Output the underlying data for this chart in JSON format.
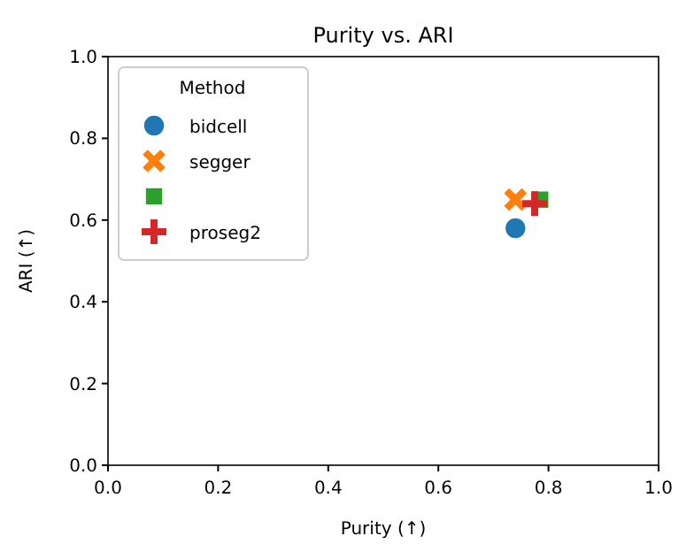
{
  "chart_data": {
    "type": "scatter",
    "title": "Purity vs. ARI",
    "xlabel": "Purity (↑)",
    "ylabel": "ARI (↑)",
    "legend_title": "Method",
    "legend": "top left",
    "xlim": [
      0,
      1
    ],
    "xticks": [
      {
        "value": 0,
        "label": "0.0"
      },
      0.2,
      0.4,
      0.6,
      0.8,
      {
        "value": 1,
        "label": "1.0"
      }
    ],
    "ylim": [
      0,
      1
    ],
    "yticks": [
      {
        "value": 0,
        "label": "0.0"
      },
      0.2,
      0.4,
      0.6,
      0.8,
      {
        "value": 1,
        "label": "1.0"
      }
    ],
    "series": [
      {
        "name": "bidcell",
        "color": "#1f77b4",
        "marker": "circle",
        "x": [
          0.74
        ],
        "values": [
          0.58
        ]
      },
      {
        "name": "segger",
        "color": "#ff7f0e",
        "marker": "cross",
        "x": [
          0.74
        ],
        "values": [
          0.65
        ]
      },
      {
        "color": "#2ca02c",
        "marker": "square",
        "x": [
          0.785
        ],
        "values": [
          0.65
        ]
      },
      {
        "name": "proseg2",
        "color": "#d62728",
        "marker": "plus",
        "x": [
          0.775
        ],
        "values": [
          0.64
        ]
      }
    ]
  }
}
